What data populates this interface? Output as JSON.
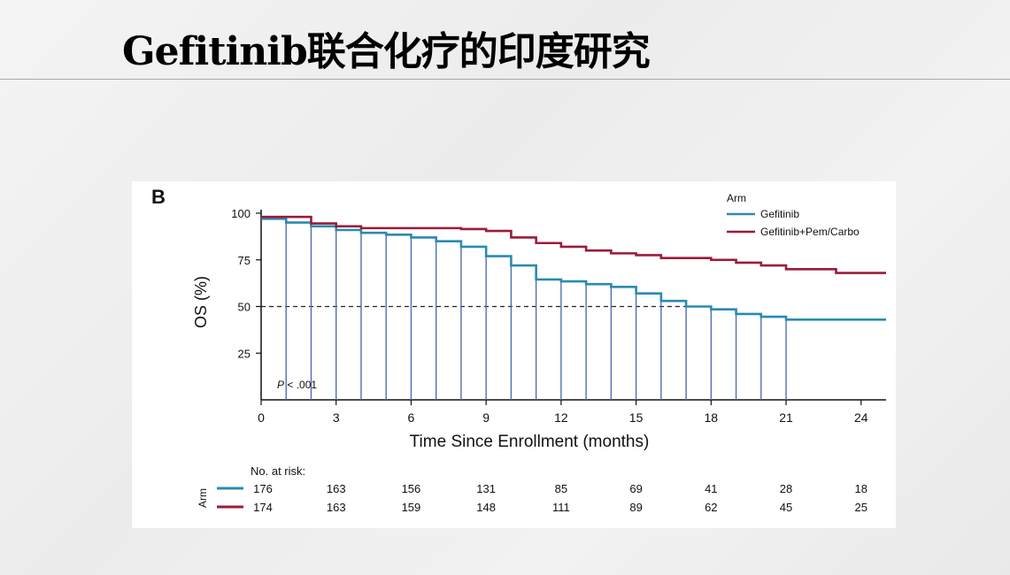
{
  "slide": {
    "title": "Gefitinib联合化疗的印度研究"
  },
  "chart_data": {
    "type": "line",
    "panel_label": "B",
    "title": "",
    "xlabel": "Time Since Enrollment (months)",
    "ylabel": "OS (%)",
    "xlim": [
      0,
      25
    ],
    "ylim": [
      0,
      100
    ],
    "xticks": [
      0,
      3,
      6,
      9,
      12,
      15,
      18,
      21,
      24
    ],
    "yticks": [
      25,
      50,
      75,
      100
    ],
    "grid": false,
    "legend": {
      "title": "Arm",
      "placement": "top-right"
    },
    "annotation": {
      "p_italic": "P",
      "p_rest": " < .001"
    },
    "reference_line": {
      "y": 50,
      "x_end": 17
    },
    "series": [
      {
        "name": "Gefitinib",
        "color": "#2a8bb0",
        "step": [
          [
            0,
            97
          ],
          [
            1,
            95
          ],
          [
            2,
            93
          ],
          [
            3,
            91
          ],
          [
            4,
            89.5
          ],
          [
            5,
            88.5
          ],
          [
            6,
            87
          ],
          [
            7,
            85
          ],
          [
            8,
            82
          ],
          [
            9,
            77
          ],
          [
            10,
            72
          ],
          [
            11,
            64.5
          ],
          [
            12,
            63.5
          ],
          [
            13,
            62
          ],
          [
            14,
            60.5
          ],
          [
            15,
            57
          ],
          [
            16,
            53
          ],
          [
            17,
            50
          ],
          [
            18,
            48.5
          ],
          [
            19,
            46
          ],
          [
            20,
            44.5
          ],
          [
            21,
            43
          ],
          [
            25,
            43
          ]
        ],
        "drops": [
          1,
          2,
          3,
          4,
          5,
          6,
          7,
          8,
          9,
          10,
          11,
          12,
          13,
          14,
          15,
          16,
          17,
          18,
          19,
          20,
          21
        ]
      },
      {
        "name": "Gefitinib+Pem/Carbo",
        "color": "#9b1b3a",
        "step": [
          [
            0,
            98
          ],
          [
            2,
            94.5
          ],
          [
            3,
            93
          ],
          [
            4,
            92
          ],
          [
            8,
            91.5
          ],
          [
            9,
            90.5
          ],
          [
            10,
            87
          ],
          [
            11,
            84
          ],
          [
            12,
            82
          ],
          [
            13,
            80
          ],
          [
            14,
            78.5
          ],
          [
            15,
            77.5
          ],
          [
            16,
            76
          ],
          [
            18,
            75
          ],
          [
            19,
            73.5
          ],
          [
            20,
            72
          ],
          [
            21,
            70
          ],
          [
            23,
            68
          ],
          [
            25,
            68
          ]
        ]
      }
    ],
    "risk_table": {
      "header": "No. at risk:",
      "row_axis_label": "Arm",
      "times": [
        0,
        3,
        6,
        9,
        12,
        15,
        18,
        21,
        24
      ],
      "rows": [
        {
          "color": "#2a8bb0",
          "values": [
            "176",
            "163",
            "156",
            "131",
            "85",
            "69",
            "41",
            "28",
            "18"
          ]
        },
        {
          "color": "#9b1b3a",
          "values": [
            "174",
            "163",
            "159",
            "148",
            "111",
            "89",
            "62",
            "45",
            "25"
          ]
        }
      ]
    }
  }
}
